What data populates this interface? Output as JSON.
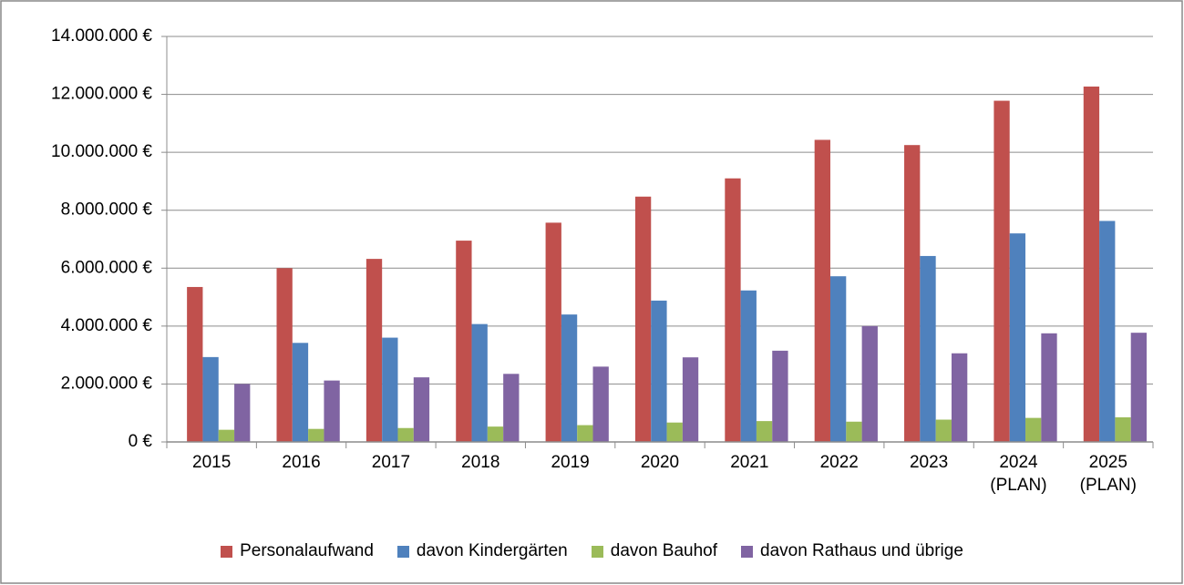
{
  "chart_data": {
    "type": "bar",
    "categories": [
      "2015",
      "2016",
      "2017",
      "2018",
      "2019",
      "2020",
      "2021",
      "2022",
      "2023",
      "2024 (PLAN)",
      "2025 (PLAN)"
    ],
    "series": [
      {
        "name": "Personalaufwand",
        "color": "#c0504d",
        "values": [
          5350000,
          6000000,
          6320000,
          6950000,
          7570000,
          8470000,
          9100000,
          10430000,
          10250000,
          11780000,
          12270000
        ]
      },
      {
        "name": "davon Kindergärten",
        "color": "#4f81bd",
        "values": [
          2930000,
          3420000,
          3600000,
          4070000,
          4400000,
          4880000,
          5230000,
          5720000,
          6420000,
          7200000,
          7630000
        ]
      },
      {
        "name": "davon Bauhof",
        "color": "#9bbb59",
        "values": [
          420000,
          450000,
          480000,
          530000,
          580000,
          670000,
          720000,
          700000,
          770000,
          830000,
          850000
        ]
      },
      {
        "name": "davon Rathaus und übrige",
        "color": "#8064a2",
        "values": [
          2000000,
          2120000,
          2230000,
          2350000,
          2600000,
          2920000,
          3150000,
          4000000,
          3060000,
          3750000,
          3770000
        ]
      }
    ],
    "ylim": [
      0,
      14000000
    ],
    "yticks": [
      {
        "value": 0,
        "label": "0 €"
      },
      {
        "value": 2000000,
        "label": "2.000.000 €"
      },
      {
        "value": 4000000,
        "label": "4.000.000 €"
      },
      {
        "value": 6000000,
        "label": "6.000.000 €"
      },
      {
        "value": 8000000,
        "label": "8.000.000 €"
      },
      {
        "value": 10000000,
        "label": "10.000.000 €"
      },
      {
        "value": 12000000,
        "label": "12.000.000 €"
      },
      {
        "value": 14000000,
        "label": "14.000.000 €"
      }
    ],
    "grid": true,
    "legend": "bottom"
  }
}
